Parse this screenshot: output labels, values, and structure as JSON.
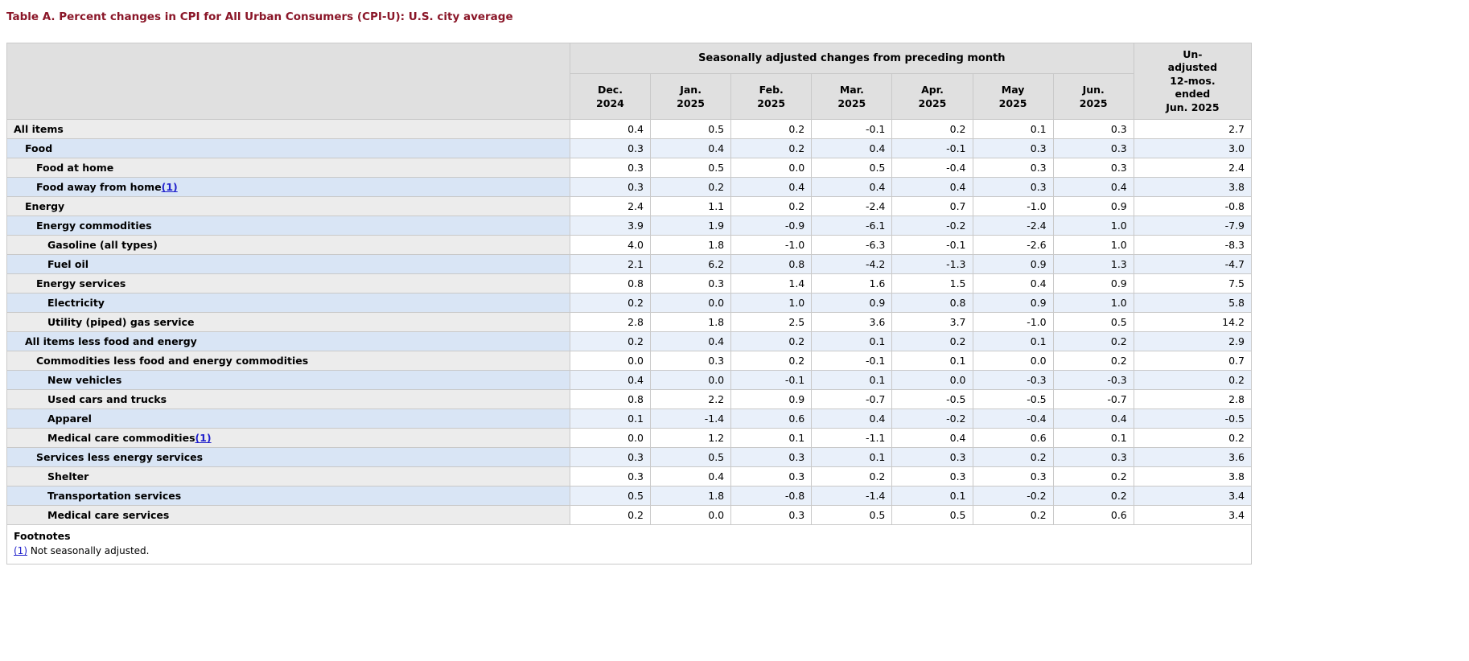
{
  "page": {
    "title": "Table A. Percent changes in CPI for All Urban Consumers (CPI-U): U.S. city average"
  },
  "colors": {
    "title_color": "#8a1628",
    "header_bg": "#e0e0e0",
    "stub_gray": "#ececec",
    "stub_blue": "#d9e5f5",
    "data_blue": "#e9f0fa",
    "link_color": "#2222cc"
  },
  "table": {
    "group_header": "Seasonally adjusted changes from preceding month",
    "unadjusted_header_lines": [
      "Un-",
      "adjusted",
      "12-mos.",
      "ended",
      "Jun. 2025"
    ],
    "month_headers": [
      {
        "line1": "Dec.",
        "line2": "2024"
      },
      {
        "line1": "Jan.",
        "line2": "2025"
      },
      {
        "line1": "Feb.",
        "line2": "2025"
      },
      {
        "line1": "Mar.",
        "line2": "2025"
      },
      {
        "line1": "Apr.",
        "line2": "2025"
      },
      {
        "line1": "May",
        "line2": "2025"
      },
      {
        "line1": "Jun.",
        "line2": "2025"
      }
    ],
    "rows": [
      {
        "label": "All items",
        "indent": 0,
        "footnote": null,
        "values": [
          "0.4",
          "0.5",
          "0.2",
          "-0.1",
          "0.2",
          "0.1",
          "0.3",
          "2.7"
        ]
      },
      {
        "label": "Food",
        "indent": 1,
        "footnote": null,
        "values": [
          "0.3",
          "0.4",
          "0.2",
          "0.4",
          "-0.1",
          "0.3",
          "0.3",
          "3.0"
        ]
      },
      {
        "label": "Food at home",
        "indent": 2,
        "footnote": null,
        "values": [
          "0.3",
          "0.5",
          "0.0",
          "0.5",
          "-0.4",
          "0.3",
          "0.3",
          "2.4"
        ]
      },
      {
        "label": "Food away from home",
        "indent": 2,
        "footnote": "(1)",
        "values": [
          "0.3",
          "0.2",
          "0.4",
          "0.4",
          "0.4",
          "0.3",
          "0.4",
          "3.8"
        ]
      },
      {
        "label": "Energy",
        "indent": 1,
        "footnote": null,
        "values": [
          "2.4",
          "1.1",
          "0.2",
          "-2.4",
          "0.7",
          "-1.0",
          "0.9",
          "-0.8"
        ]
      },
      {
        "label": "Energy commodities",
        "indent": 2,
        "footnote": null,
        "values": [
          "3.9",
          "1.9",
          "-0.9",
          "-6.1",
          "-0.2",
          "-2.4",
          "1.0",
          "-7.9"
        ]
      },
      {
        "label": "Gasoline (all types)",
        "indent": 3,
        "footnote": null,
        "values": [
          "4.0",
          "1.8",
          "-1.0",
          "-6.3",
          "-0.1",
          "-2.6",
          "1.0",
          "-8.3"
        ]
      },
      {
        "label": "Fuel oil",
        "indent": 3,
        "footnote": null,
        "values": [
          "2.1",
          "6.2",
          "0.8",
          "-4.2",
          "-1.3",
          "0.9",
          "1.3",
          "-4.7"
        ]
      },
      {
        "label": "Energy services",
        "indent": 2,
        "footnote": null,
        "values": [
          "0.8",
          "0.3",
          "1.4",
          "1.6",
          "1.5",
          "0.4",
          "0.9",
          "7.5"
        ]
      },
      {
        "label": "Electricity",
        "indent": 3,
        "footnote": null,
        "values": [
          "0.2",
          "0.0",
          "1.0",
          "0.9",
          "0.8",
          "0.9",
          "1.0",
          "5.8"
        ]
      },
      {
        "label": "Utility (piped) gas service",
        "indent": 3,
        "footnote": null,
        "values": [
          "2.8",
          "1.8",
          "2.5",
          "3.6",
          "3.7",
          "-1.0",
          "0.5",
          "14.2"
        ]
      },
      {
        "label": "All items less food and energy",
        "indent": 1,
        "footnote": null,
        "values": [
          "0.2",
          "0.4",
          "0.2",
          "0.1",
          "0.2",
          "0.1",
          "0.2",
          "2.9"
        ]
      },
      {
        "label": "Commodities less food and energy commodities",
        "indent": 2,
        "footnote": null,
        "values": [
          "0.0",
          "0.3",
          "0.2",
          "-0.1",
          "0.1",
          "0.0",
          "0.2",
          "0.7"
        ]
      },
      {
        "label": "New vehicles",
        "indent": 3,
        "footnote": null,
        "values": [
          "0.4",
          "0.0",
          "-0.1",
          "0.1",
          "0.0",
          "-0.3",
          "-0.3",
          "0.2"
        ]
      },
      {
        "label": "Used cars and trucks",
        "indent": 3,
        "footnote": null,
        "values": [
          "0.8",
          "2.2",
          "0.9",
          "-0.7",
          "-0.5",
          "-0.5",
          "-0.7",
          "2.8"
        ]
      },
      {
        "label": "Apparel",
        "indent": 3,
        "footnote": null,
        "values": [
          "0.1",
          "-1.4",
          "0.6",
          "0.4",
          "-0.2",
          "-0.4",
          "0.4",
          "-0.5"
        ]
      },
      {
        "label": "Medical care commodities",
        "indent": 3,
        "footnote": "(1)",
        "values": [
          "0.0",
          "1.2",
          "0.1",
          "-1.1",
          "0.4",
          "0.6",
          "0.1",
          "0.2"
        ]
      },
      {
        "label": "Services less energy services",
        "indent": 2,
        "footnote": null,
        "values": [
          "0.3",
          "0.5",
          "0.3",
          "0.1",
          "0.3",
          "0.2",
          "0.3",
          "3.6"
        ]
      },
      {
        "label": "Shelter",
        "indent": 3,
        "footnote": null,
        "values": [
          "0.3",
          "0.4",
          "0.3",
          "0.2",
          "0.3",
          "0.3",
          "0.2",
          "3.8"
        ]
      },
      {
        "label": "Transportation services",
        "indent": 3,
        "footnote": null,
        "values": [
          "0.5",
          "1.8",
          "-0.8",
          "-1.4",
          "0.1",
          "-0.2",
          "0.2",
          "3.4"
        ]
      },
      {
        "label": "Medical care services",
        "indent": 3,
        "footnote": null,
        "values": [
          "0.2",
          "0.0",
          "0.3",
          "0.5",
          "0.5",
          "0.2",
          "0.6",
          "3.4"
        ]
      }
    ]
  },
  "footnotes": {
    "heading": "Footnotes",
    "items": [
      {
        "marker": "(1)",
        "text": "Not seasonally adjusted."
      }
    ]
  }
}
